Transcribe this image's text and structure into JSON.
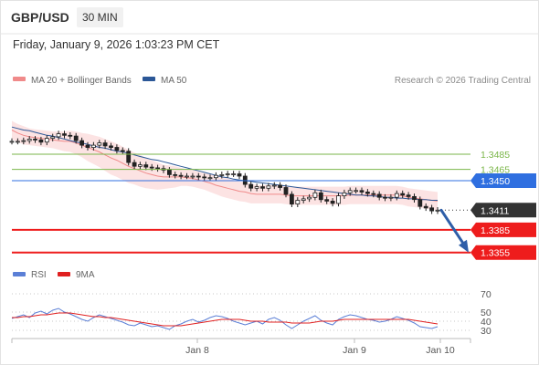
{
  "header": {
    "pair": "GBP/USD",
    "timeframe": "30 MIN",
    "datetime": "Friday, January 9, 2026 1:03:23 PM CET"
  },
  "chart_data": [
    {
      "type": "line",
      "panel": "price",
      "legend": [
        {
          "label": "MA 20 + Bollinger Bands",
          "color": "#f08a8a"
        },
        {
          "label": "MA 50",
          "color": "#2b5797"
        }
      ],
      "watermark": "Research © 2026 Trading Central",
      "grid": false,
      "y_axis_side": "right",
      "ylim": [
        1.3345,
        1.3555
      ],
      "x_ticks": [
        "Jan 8",
        "Jan 9",
        "Jan 10"
      ],
      "levels": [
        {
          "value": 1.3485,
          "label": "1.3485",
          "color": "#7ab648",
          "style": "thin",
          "label_style": "text"
        },
        {
          "value": 1.3465,
          "label": "1.3465",
          "color": "#7ab648",
          "style": "thin",
          "label_style": "text"
        },
        {
          "value": 1.345,
          "label": "1.3450",
          "color": "#2f6fe0",
          "style": "thin",
          "label_style": "box"
        },
        {
          "value": 1.3411,
          "label": "1.3411",
          "color": "#333333",
          "style": "dotted",
          "label_style": "box"
        },
        {
          "value": 1.3385,
          "label": "1.3385",
          "color": "#ee1c1c",
          "style": "thick",
          "label_style": "box"
        },
        {
          "value": 1.3355,
          "label": "1.3355",
          "color": "#ee1c1c",
          "style": "thick",
          "label_style": "box"
        }
      ],
      "price_series": [
        1.3502,
        1.3502,
        1.3503,
        1.3505,
        1.3504,
        1.3501,
        1.3506,
        1.3508,
        1.3512,
        1.351,
        1.3509,
        1.3503,
        1.3497,
        1.3494,
        1.3497,
        1.35,
        1.3496,
        1.3494,
        1.349,
        1.3489,
        1.3474,
        1.3469,
        1.3471,
        1.3468,
        1.3467,
        1.3466,
        1.3464,
        1.3458,
        1.3457,
        1.3456,
        1.3456,
        1.3456,
        1.3455,
        1.3454,
        1.3454,
        1.3457,
        1.3458,
        1.3459,
        1.3459,
        1.3456,
        1.3445,
        1.344,
        1.3442,
        1.344,
        1.3443,
        1.3444,
        1.3441,
        1.3432,
        1.3419,
        1.3424,
        1.3426,
        1.3428,
        1.3434,
        1.3425,
        1.3423,
        1.342,
        1.343,
        1.3434,
        1.3437,
        1.3437,
        1.3435,
        1.3433,
        1.3432,
        1.3428,
        1.3427,
        1.3428,
        1.3433,
        1.3431,
        1.3429,
        1.3425,
        1.3416,
        1.3414,
        1.341,
        1.3411
      ],
      "ma20": [
        1.3517,
        1.3513,
        1.351,
        1.3508,
        1.3507,
        1.3506,
        1.3505,
        1.3504,
        1.3503,
        1.3502,
        1.3502,
        1.35,
        1.3497,
        1.3494,
        1.3491,
        1.3488,
        1.3484,
        1.348,
        1.3477,
        1.3473,
        1.3469,
        1.3466,
        1.3463,
        1.346,
        1.3458,
        1.3456,
        1.3455,
        1.3455,
        1.3455,
        1.3455,
        1.3454,
        1.3453,
        1.3451,
        1.3449,
        1.3447,
        1.3444,
        1.3442,
        1.344,
        1.3438,
        1.3436,
        1.3435,
        1.3433,
        1.3432,
        1.3432,
        1.3432,
        1.3432,
        1.3432,
        1.3431,
        1.343,
        1.343,
        1.343,
        1.343,
        1.343,
        1.343,
        1.343,
        1.343,
        1.343,
        1.343,
        1.3431,
        1.3431,
        1.3431,
        1.3431,
        1.3431,
        1.3431,
        1.3431,
        1.3431,
        1.3431,
        1.343,
        1.3428,
        1.3427,
        1.3426,
        1.3425,
        1.3424,
        1.3423
      ],
      "bb_width": [
        0.0012,
        0.0012,
        0.0012,
        0.0011,
        0.0011,
        0.0011,
        0.0011,
        0.0011,
        0.0012,
        0.0013,
        0.0014,
        0.0015,
        0.0016,
        0.0018,
        0.0019,
        0.002,
        0.0021,
        0.0022,
        0.0022,
        0.0022,
        0.0022,
        0.0021,
        0.0021,
        0.002,
        0.0019,
        0.0018,
        0.0016,
        0.0015,
        0.0014,
        0.0012,
        0.0011,
        0.0011,
        0.0011,
        0.0011,
        0.0012,
        0.0012,
        0.0013,
        0.0013,
        0.0013,
        0.0013,
        0.0013,
        0.0013,
        0.0012,
        0.0012,
        0.0012,
        0.0012,
        0.0012,
        0.0012,
        0.0012,
        0.0012,
        0.0012,
        0.0012,
        0.0012,
        0.0012,
        0.0012,
        0.0012,
        0.0012,
        0.0012,
        0.0012,
        0.0012,
        0.0012,
        0.0012,
        0.0012,
        0.0012,
        0.0012,
        0.0012,
        0.0012,
        0.0012,
        0.0012,
        0.0012,
        0.0012,
        0.0012,
        0.0012,
        0.0012
      ],
      "ma50": [
        1.3521,
        1.3519,
        1.3517,
        1.3516,
        1.3514,
        1.3512,
        1.351,
        1.3509,
        1.3507,
        1.3505,
        1.3503,
        1.3501,
        1.35,
        1.3498,
        1.3496,
        1.3494,
        1.3493,
        1.3491,
        1.3489,
        1.3488,
        1.3486,
        1.3484,
        1.3482,
        1.348,
        1.3478,
        1.3477,
        1.3475,
        1.3473,
        1.3471,
        1.3469,
        1.3467,
        1.3465,
        1.3463,
        1.3461,
        1.3459,
        1.3457,
        1.3455,
        1.3454,
        1.3452,
        1.3451,
        1.345,
        1.3449,
        1.3448,
        1.3447,
        1.3446,
        1.3445,
        1.3444,
        1.3443,
        1.3442,
        1.3441,
        1.344,
        1.3439,
        1.3438,
        1.3437,
        1.3436,
        1.3435,
        1.3434,
        1.3433,
        1.3432,
        1.3431,
        1.3431,
        1.343,
        1.343,
        1.3429,
        1.3428,
        1.3428,
        1.3427,
        1.3427,
        1.3426,
        1.3426,
        1.3425,
        1.3425,
        1.3424,
        1.3424
      ],
      "forecast_arrow": {
        "from": 1.3411,
        "to": 1.3355
      }
    },
    {
      "type": "line",
      "panel": "rsi",
      "legend": [
        {
          "label": "RSI",
          "color": "#5b7fd6"
        },
        {
          "label": "9MA",
          "color": "#e02020"
        }
      ],
      "ylim": [
        25,
        75
      ],
      "y_ticks": [
        70,
        50,
        40,
        30
      ],
      "grid": true,
      "rsi": [
        43,
        45,
        47,
        44,
        49,
        51,
        48,
        52,
        54,
        50,
        48,
        45,
        42,
        40,
        44,
        47,
        45,
        43,
        41,
        39,
        36,
        35,
        38,
        36,
        34,
        35,
        33,
        31,
        35,
        37,
        40,
        42,
        39,
        41,
        44,
        46,
        45,
        43,
        40,
        38,
        36,
        38,
        40,
        37,
        42,
        44,
        41,
        36,
        32,
        36,
        40,
        43,
        46,
        41,
        38,
        36,
        42,
        45,
        47,
        46,
        44,
        42,
        41,
        39,
        40,
        42,
        45,
        43,
        41,
        38,
        34,
        33,
        32,
        34
      ],
      "ma9": [
        44,
        44,
        45,
        45,
        46,
        47,
        47,
        48,
        49,
        49,
        49,
        48,
        47,
        46,
        45,
        45,
        44,
        44,
        43,
        42,
        41,
        40,
        39,
        38,
        37,
        36,
        35,
        35,
        35,
        35,
        36,
        37,
        38,
        39,
        40,
        41,
        42,
        42,
        42,
        42,
        41,
        40,
        40,
        40,
        39,
        39,
        39,
        39,
        38,
        38,
        38,
        38,
        39,
        40,
        40,
        40,
        41,
        42,
        42,
        42,
        42,
        42,
        42,
        42,
        42,
        42,
        42,
        42,
        42,
        41,
        40,
        39,
        38,
        37
      ]
    }
  ]
}
